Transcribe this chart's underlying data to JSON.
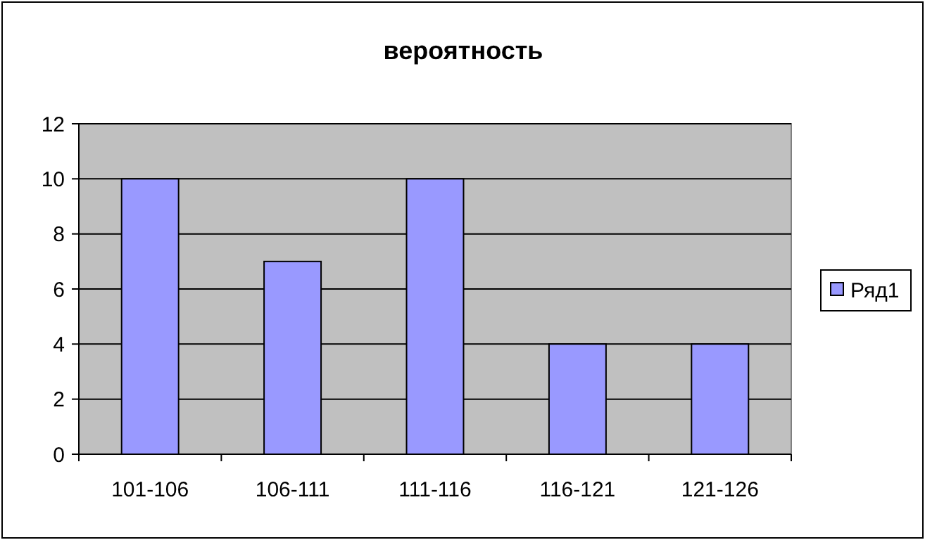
{
  "chart_data": {
    "type": "bar",
    "title": "вероятность",
    "categories": [
      "101-106",
      "106-111",
      "111-116",
      "116-121",
      "121-126"
    ],
    "series": [
      {
        "name": "Ряд1",
        "color": "#9999ff",
        "values": [
          10,
          7,
          10,
          4,
          4
        ]
      }
    ],
    "ylim": [
      0,
      12
    ],
    "yticks": [
      0,
      2,
      4,
      6,
      8,
      10,
      12
    ],
    "grid": "y",
    "legend": "right"
  }
}
